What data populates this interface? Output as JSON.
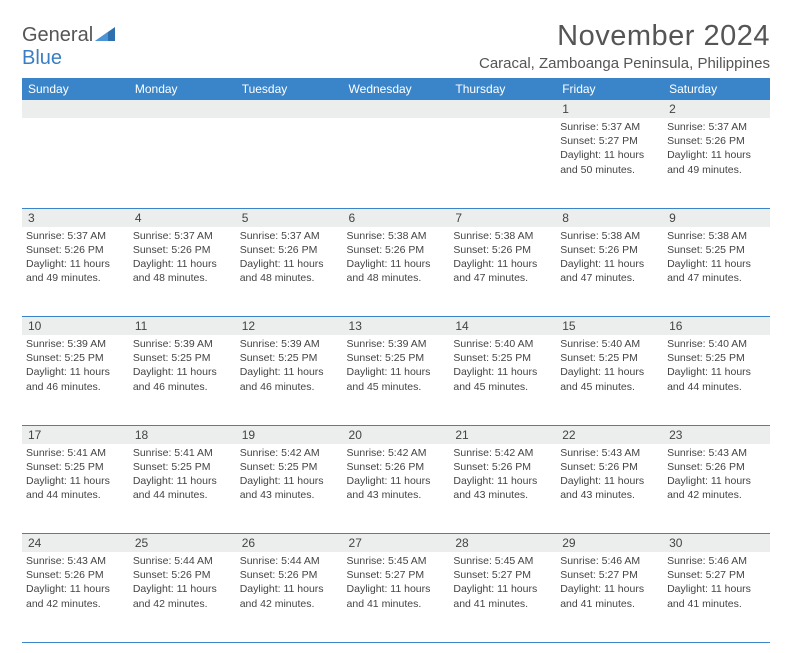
{
  "logo": {
    "part1": "General",
    "part2": "Blue"
  },
  "title": "November 2024",
  "location": "Caracal, Zamboanga Peninsula, Philippines",
  "colors": {
    "header_bg": "#3a85c9",
    "header_text": "#ffffff",
    "daynum_bg": "#eceded",
    "border": "#3a85c9",
    "text": "#444444",
    "logo_blue": "#3a7fc4"
  },
  "weekdays": [
    "Sunday",
    "Monday",
    "Tuesday",
    "Wednesday",
    "Thursday",
    "Friday",
    "Saturday"
  ],
  "weeks": [
    {
      "nums": [
        "",
        "",
        "",
        "",
        "",
        "1",
        "2"
      ],
      "cells": [
        null,
        null,
        null,
        null,
        null,
        {
          "sunrise": "Sunrise: 5:37 AM",
          "sunset": "Sunset: 5:27 PM",
          "day1": "Daylight: 11 hours",
          "day2": "and 50 minutes."
        },
        {
          "sunrise": "Sunrise: 5:37 AM",
          "sunset": "Sunset: 5:26 PM",
          "day1": "Daylight: 11 hours",
          "day2": "and 49 minutes."
        }
      ]
    },
    {
      "nums": [
        "3",
        "4",
        "5",
        "6",
        "7",
        "8",
        "9"
      ],
      "cells": [
        {
          "sunrise": "Sunrise: 5:37 AM",
          "sunset": "Sunset: 5:26 PM",
          "day1": "Daylight: 11 hours",
          "day2": "and 49 minutes."
        },
        {
          "sunrise": "Sunrise: 5:37 AM",
          "sunset": "Sunset: 5:26 PM",
          "day1": "Daylight: 11 hours",
          "day2": "and 48 minutes."
        },
        {
          "sunrise": "Sunrise: 5:37 AM",
          "sunset": "Sunset: 5:26 PM",
          "day1": "Daylight: 11 hours",
          "day2": "and 48 minutes."
        },
        {
          "sunrise": "Sunrise: 5:38 AM",
          "sunset": "Sunset: 5:26 PM",
          "day1": "Daylight: 11 hours",
          "day2": "and 48 minutes."
        },
        {
          "sunrise": "Sunrise: 5:38 AM",
          "sunset": "Sunset: 5:26 PM",
          "day1": "Daylight: 11 hours",
          "day2": "and 47 minutes."
        },
        {
          "sunrise": "Sunrise: 5:38 AM",
          "sunset": "Sunset: 5:26 PM",
          "day1": "Daylight: 11 hours",
          "day2": "and 47 minutes."
        },
        {
          "sunrise": "Sunrise: 5:38 AM",
          "sunset": "Sunset: 5:25 PM",
          "day1": "Daylight: 11 hours",
          "day2": "and 47 minutes."
        }
      ]
    },
    {
      "nums": [
        "10",
        "11",
        "12",
        "13",
        "14",
        "15",
        "16"
      ],
      "cells": [
        {
          "sunrise": "Sunrise: 5:39 AM",
          "sunset": "Sunset: 5:25 PM",
          "day1": "Daylight: 11 hours",
          "day2": "and 46 minutes."
        },
        {
          "sunrise": "Sunrise: 5:39 AM",
          "sunset": "Sunset: 5:25 PM",
          "day1": "Daylight: 11 hours",
          "day2": "and 46 minutes."
        },
        {
          "sunrise": "Sunrise: 5:39 AM",
          "sunset": "Sunset: 5:25 PM",
          "day1": "Daylight: 11 hours",
          "day2": "and 46 minutes."
        },
        {
          "sunrise": "Sunrise: 5:39 AM",
          "sunset": "Sunset: 5:25 PM",
          "day1": "Daylight: 11 hours",
          "day2": "and 45 minutes."
        },
        {
          "sunrise": "Sunrise: 5:40 AM",
          "sunset": "Sunset: 5:25 PM",
          "day1": "Daylight: 11 hours",
          "day2": "and 45 minutes."
        },
        {
          "sunrise": "Sunrise: 5:40 AM",
          "sunset": "Sunset: 5:25 PM",
          "day1": "Daylight: 11 hours",
          "day2": "and 45 minutes."
        },
        {
          "sunrise": "Sunrise: 5:40 AM",
          "sunset": "Sunset: 5:25 PM",
          "day1": "Daylight: 11 hours",
          "day2": "and 44 minutes."
        }
      ]
    },
    {
      "nums": [
        "17",
        "18",
        "19",
        "20",
        "21",
        "22",
        "23"
      ],
      "cells": [
        {
          "sunrise": "Sunrise: 5:41 AM",
          "sunset": "Sunset: 5:25 PM",
          "day1": "Daylight: 11 hours",
          "day2": "and 44 minutes."
        },
        {
          "sunrise": "Sunrise: 5:41 AM",
          "sunset": "Sunset: 5:25 PM",
          "day1": "Daylight: 11 hours",
          "day2": "and 44 minutes."
        },
        {
          "sunrise": "Sunrise: 5:42 AM",
          "sunset": "Sunset: 5:25 PM",
          "day1": "Daylight: 11 hours",
          "day2": "and 43 minutes."
        },
        {
          "sunrise": "Sunrise: 5:42 AM",
          "sunset": "Sunset: 5:26 PM",
          "day1": "Daylight: 11 hours",
          "day2": "and 43 minutes."
        },
        {
          "sunrise": "Sunrise: 5:42 AM",
          "sunset": "Sunset: 5:26 PM",
          "day1": "Daylight: 11 hours",
          "day2": "and 43 minutes."
        },
        {
          "sunrise": "Sunrise: 5:43 AM",
          "sunset": "Sunset: 5:26 PM",
          "day1": "Daylight: 11 hours",
          "day2": "and 43 minutes."
        },
        {
          "sunrise": "Sunrise: 5:43 AM",
          "sunset": "Sunset: 5:26 PM",
          "day1": "Daylight: 11 hours",
          "day2": "and 42 minutes."
        }
      ]
    },
    {
      "nums": [
        "24",
        "25",
        "26",
        "27",
        "28",
        "29",
        "30"
      ],
      "cells": [
        {
          "sunrise": "Sunrise: 5:43 AM",
          "sunset": "Sunset: 5:26 PM",
          "day1": "Daylight: 11 hours",
          "day2": "and 42 minutes."
        },
        {
          "sunrise": "Sunrise: 5:44 AM",
          "sunset": "Sunset: 5:26 PM",
          "day1": "Daylight: 11 hours",
          "day2": "and 42 minutes."
        },
        {
          "sunrise": "Sunrise: 5:44 AM",
          "sunset": "Sunset: 5:26 PM",
          "day1": "Daylight: 11 hours",
          "day2": "and 42 minutes."
        },
        {
          "sunrise": "Sunrise: 5:45 AM",
          "sunset": "Sunset: 5:27 PM",
          "day1": "Daylight: 11 hours",
          "day2": "and 41 minutes."
        },
        {
          "sunrise": "Sunrise: 5:45 AM",
          "sunset": "Sunset: 5:27 PM",
          "day1": "Daylight: 11 hours",
          "day2": "and 41 minutes."
        },
        {
          "sunrise": "Sunrise: 5:46 AM",
          "sunset": "Sunset: 5:27 PM",
          "day1": "Daylight: 11 hours",
          "day2": "and 41 minutes."
        },
        {
          "sunrise": "Sunrise: 5:46 AM",
          "sunset": "Sunset: 5:27 PM",
          "day1": "Daylight: 11 hours",
          "day2": "and 41 minutes."
        }
      ]
    }
  ]
}
